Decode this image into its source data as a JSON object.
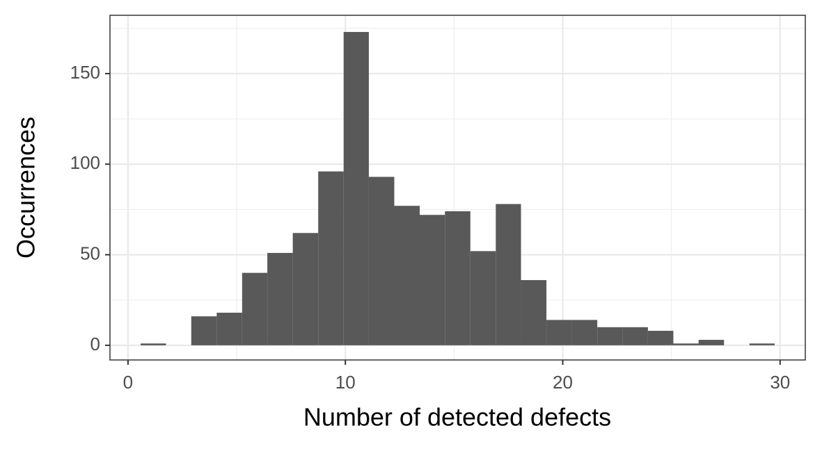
{
  "chart_data": {
    "type": "histogram",
    "x_label": "Number of detected defects",
    "y_label": "Occurrences",
    "bins": [
      0.58,
      1.75,
      2.91,
      4.08,
      5.25,
      6.41,
      7.58,
      8.75,
      9.92,
      11.08,
      12.25,
      13.42,
      14.58,
      15.75,
      16.92,
      18.08,
      19.25,
      20.42,
      21.59,
      22.75,
      23.92,
      25.09,
      26.25,
      27.42,
      28.59,
      29.75
    ],
    "values": [
      1,
      0,
      16,
      18,
      40,
      51,
      62,
      96,
      173,
      93,
      77,
      72,
      74,
      52,
      78,
      36,
      14,
      14,
      10,
      10,
      8,
      1,
      3,
      0,
      1
    ],
    "color": "#595959",
    "xlim": [
      -0.83,
      31.16
    ],
    "xticks": [
      0,
      10,
      20,
      30
    ],
    "ylim": [
      -8.1,
      182.2
    ],
    "yticks": [
      0,
      50,
      100,
      150
    ],
    "grid": true
  }
}
